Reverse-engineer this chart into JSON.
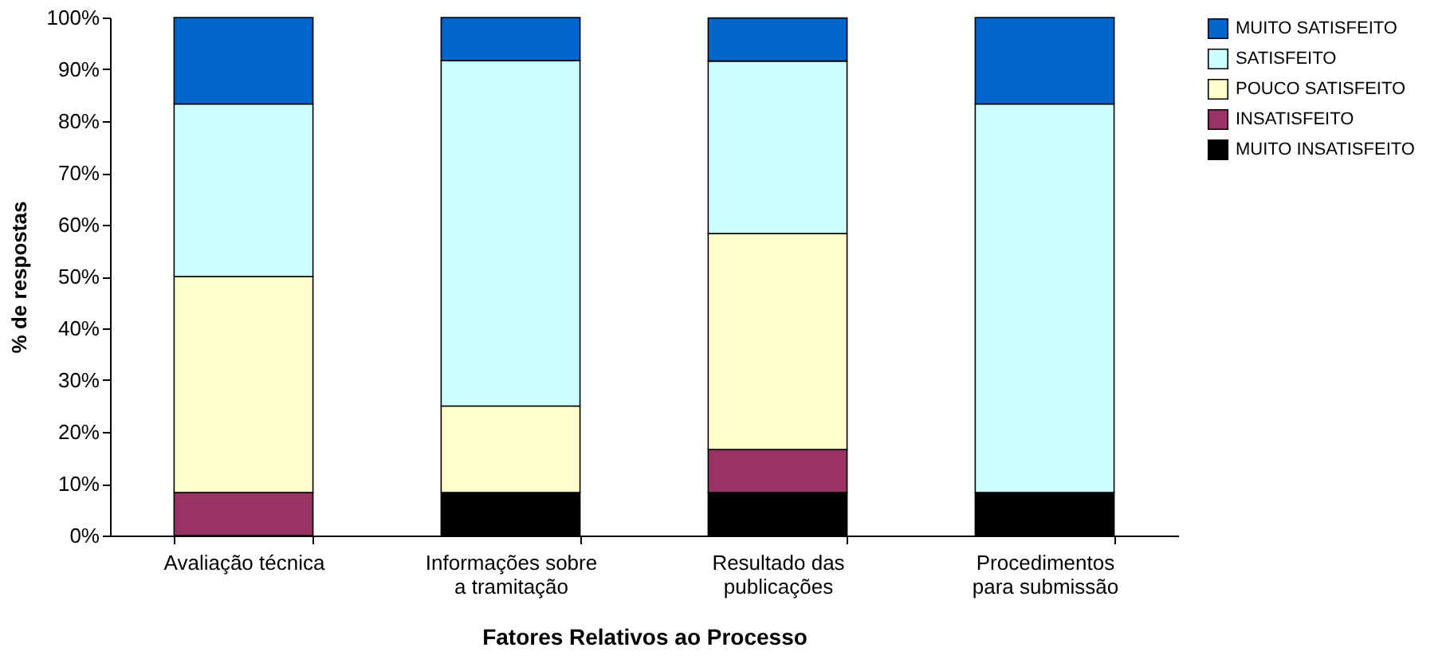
{
  "chart_data": {
    "type": "bar",
    "stacked": true,
    "xlabel": "Fatores Relativos ao Processo",
    "ylabel": "% de respostas",
    "categories": [
      "Avaliação técnica",
      "Informações sobre a tramitação",
      "Resultado das publicações",
      "Procedimentos para submissão"
    ],
    "series": [
      {
        "name": "MUITO INSATISFEITO",
        "color": "#000000",
        "values": [
          null,
          8.3,
          8.3,
          8.3
        ]
      },
      {
        "name": "INSATISFEITO",
        "color": "#993366",
        "values": [
          8.3,
          null,
          8.3,
          null
        ]
      },
      {
        "name": "POUCO SATISFEITO",
        "color": "#ffffcc",
        "values": [
          41.7,
          16.7,
          41.7,
          null
        ]
      },
      {
        "name": "SATISFEITO",
        "color": "#ccffff",
        "values": [
          33.3,
          66.7,
          33.3,
          75
        ]
      },
      {
        "name": "MUITO SATISFEITO",
        "color": "#0066cc",
        "values": [
          16.7,
          8.3,
          8.3,
          16.7
        ]
      }
    ],
    "ylim": [
      0,
      100
    ],
    "yticks": [
      {
        "value": 0,
        "label": "0%"
      },
      {
        "value": 10,
        "label": "10%"
      },
      {
        "value": 20,
        "label": "20%"
      },
      {
        "value": 30,
        "label": "30%"
      },
      {
        "value": 40,
        "label": "40%"
      },
      {
        "value": 50,
        "label": "50%"
      },
      {
        "value": 60,
        "label": "60%"
      },
      {
        "value": 70,
        "label": "70%"
      },
      {
        "value": 80,
        "label": "80%"
      },
      {
        "value": 90,
        "label": "90%"
      },
      {
        "value": 100,
        "label": "100%"
      }
    ],
    "grid": false,
    "legend": "top right"
  }
}
